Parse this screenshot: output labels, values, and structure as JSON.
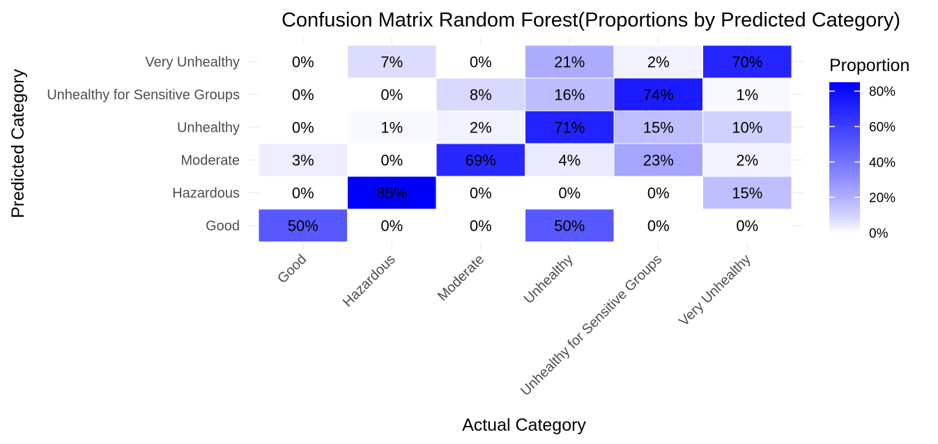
{
  "chart_data": {
    "type": "heatmap",
    "title": "Confusion Matrix Random Forest(Proportions by Predicted Category)",
    "xlabel": "Actual Category",
    "ylabel": "Predicted Category",
    "x_categories": [
      "Good",
      "Hazardous",
      "Moderate",
      "Unhealthy",
      "Unhealthy for Sensitive Groups",
      "Very Unhealthy"
    ],
    "y_categories": [
      "Very Unhealthy",
      "Unhealthy for Sensitive Groups",
      "Unhealthy",
      "Moderate",
      "Hazardous",
      "Good"
    ],
    "values": [
      [
        0,
        7,
        0,
        21,
        2,
        70
      ],
      [
        0,
        0,
        8,
        16,
        74,
        1
      ],
      [
        0,
        1,
        2,
        71,
        15,
        10
      ],
      [
        3,
        0,
        69,
        4,
        23,
        2
      ],
      [
        0,
        85,
        0,
        0,
        0,
        15
      ],
      [
        50,
        0,
        0,
        50,
        0,
        0
      ]
    ],
    "value_suffix": "%",
    "legend": {
      "title": "Proportion",
      "ticks": [
        "0%",
        "20%",
        "40%",
        "60%",
        "80%"
      ],
      "tick_values": [
        0,
        20,
        40,
        60,
        80
      ],
      "range": [
        0,
        85
      ],
      "low_color": "#ffffff",
      "high_color": "#0000ff",
      "placement": "right"
    }
  }
}
